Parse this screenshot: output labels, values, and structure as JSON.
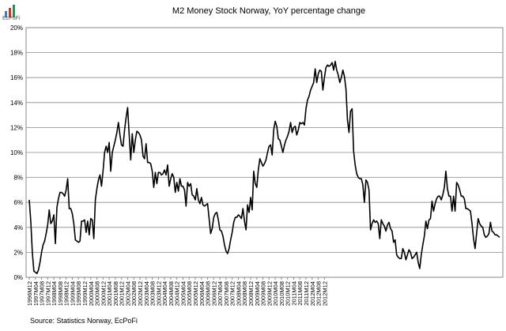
{
  "logo": {
    "text": "EcPoFi"
  },
  "source": "Source: Statistics Norway, EcPoFi",
  "chart_data": {
    "type": "line",
    "title": "M2 Money Stock Norway, YoY percentage change",
    "xlabel": "",
    "ylabel": "",
    "ylim": [
      0,
      20
    ],
    "yticks": [
      "0%",
      "2%",
      "4%",
      "6%",
      "8%",
      "10%",
      "12%",
      "14%",
      "16%",
      "18%",
      "20%"
    ],
    "x_start": "1996M12",
    "x_step_months": 1,
    "x_tick_labels": [
      "1996M12",
      "1997M04",
      "1997M08",
      "1997M12",
      "1998M04",
      "1998M08",
      "1998M12",
      "1999M04",
      "1999M08",
      "1999M12",
      "2000M04",
      "2000M08",
      "2000M12",
      "2001M04",
      "2001M08",
      "2001M12",
      "2002M04",
      "2002M08",
      "2002M12",
      "2003M04",
      "2003M08",
      "2003M12",
      "2004M04",
      "2004M08",
      "2004M12",
      "2005M04",
      "2005M08",
      "2005M12",
      "2006M04",
      "2006M08",
      "2006M12",
      "2007M04",
      "2007M08",
      "2007M12",
      "2008M04",
      "2008M08",
      "2008M12",
      "2009M04",
      "2009M08",
      "2009M12",
      "2010M04",
      "2010M08",
      "2010M12",
      "2011M04",
      "2011M08",
      "2011M12",
      "2012M04",
      "2012M08",
      "2012M12"
    ],
    "grid": true,
    "legend": "none",
    "line_color": "#000000",
    "values": [
      6.2,
      4.5,
      2.0,
      0.5,
      0.4,
      0.3,
      0.6,
      1.2,
      2.0,
      2.6,
      2.9,
      3.5,
      4.2,
      5.4,
      4.3,
      4.5,
      5.0,
      2.7,
      5.6,
      6.3,
      6.8,
      6.8,
      6.7,
      6.5,
      7.0,
      7.9,
      5.5,
      5.5,
      5.1,
      4.3,
      3.0,
      2.9,
      2.8,
      2.9,
      4.5,
      4.5,
      4.6,
      3.6,
      4.5,
      3.4,
      4.7,
      4.6,
      3.1,
      6.2,
      7.1,
      7.8,
      8.2,
      7.3,
      8.5,
      10.0,
      10.5,
      10.0,
      10.8,
      8.5,
      10.0,
      10.5,
      11.0,
      11.6,
      12.4,
      11.4,
      10.6,
      10.5,
      11.8,
      12.8,
      13.6,
      11.4,
      9.4,
      11.5,
      10.0,
      11.0,
      11.7,
      11.6,
      11.4,
      11.0,
      9.7,
      9.5,
      10.7,
      9.2,
      9.2,
      9.1,
      8.5,
      7.2,
      8.4,
      7.5,
      8.4,
      8.4,
      8.2,
      8.3,
      8.6,
      8.2,
      9.0,
      7.3,
      7.9,
      8.3,
      8.0,
      6.8,
      7.6,
      6.9,
      7.9,
      7.3,
      7.3,
      7.0,
      5.7,
      7.6,
      7.3,
      7.5,
      6.6,
      6.5,
      6.2,
      7.1,
      6.2,
      5.9,
      6.4,
      5.8,
      5.7,
      5.8,
      5.9,
      4.7,
      3.5,
      3.9,
      4.8,
      5.1,
      5.2,
      4.6,
      3.8,
      3.7,
      3.3,
      2.6,
      2.1,
      1.9,
      2.3,
      3.0,
      3.6,
      4.4,
      4.8,
      4.8,
      5.0,
      4.9,
      4.7,
      5.5,
      4.5,
      3.8,
      5.8,
      5.2,
      6.4,
      5.4,
      8.5,
      7.5,
      7.2,
      8.6,
      9.5,
      9.2,
      8.9,
      9.1,
      9.4,
      10.0,
      10.5,
      10.6,
      9.8,
      11.8,
      12.5,
      12.1,
      11.1,
      11.0,
      10.5,
      10.0,
      10.6,
      11.0,
      11.3,
      11.7,
      12.4,
      11.6,
      12.0,
      12.1,
      11.4,
      11.8,
      12.4,
      12.3,
      12.4,
      12.2,
      13.5,
      14.2,
      14.5,
      15.0,
      15.3,
      15.6,
      16.7,
      15.6,
      16.3,
      16.6,
      16.5,
      15.0,
      16.0,
      16.8,
      17.0,
      16.9,
      17.0,
      17.2,
      16.6,
      17.3,
      16.6,
      16.2,
      15.6,
      16.0,
      16.6,
      16.1,
      15.1,
      12.6,
      11.6,
      13.3,
      13.5,
      10.1,
      9.0,
      8.3,
      8.0,
      7.9,
      7.9,
      7.4,
      6.0,
      7.8,
      7.6,
      7.0,
      3.8,
      4.3,
      4.6,
      4.4,
      4.5,
      4.3,
      3.1,
      4.6,
      4.3,
      4.1,
      3.7,
      4.2,
      4.4,
      3.9,
      3.7,
      2.8,
      3.0,
      1.8,
      1.6,
      1.5,
      1.5,
      2.3,
      2.0,
      1.4,
      1.8,
      2.2,
      2.0,
      1.5,
      1.6,
      1.8,
      2.0,
      1.2,
      0.7,
      1.8,
      2.6,
      3.3,
      4.5,
      3.9,
      4.6,
      4.7,
      6.1,
      5.3,
      5.9,
      6.3,
      6.5,
      6.5,
      6.2,
      6.6,
      7.2,
      8.5,
      7.1,
      6.5,
      6.5,
      5.3,
      6.5,
      5.3,
      7.6,
      7.4,
      7.0,
      6.5,
      6.5,
      6.3,
      5.5,
      5.5,
      5.4,
      5.3,
      4.3,
      3.1,
      2.3,
      3.5,
      4.7,
      4.3,
      4.1,
      4.0,
      3.4,
      3.2,
      3.3,
      3.5,
      4.4,
      3.7,
      3.6,
      3.4,
      3.4,
      3.3,
      3.2
    ]
  }
}
